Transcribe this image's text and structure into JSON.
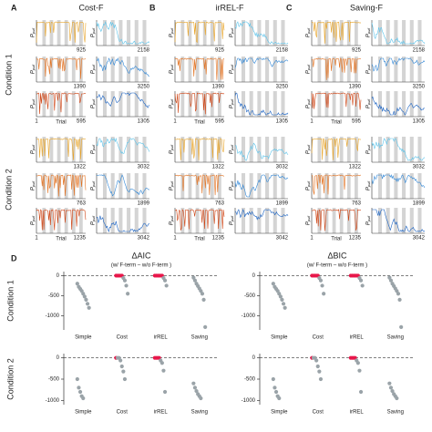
{
  "panels": [
    {
      "label": "A",
      "title": "Cost-F"
    },
    {
      "label": "B",
      "title": "irREL-F"
    },
    {
      "label": "C",
      "title": "Saving-F"
    }
  ],
  "conditions": [
    "Condition 1",
    "Condition 2"
  ],
  "trace_ylabel": "P",
  "trace_ylabel_sub": "pull",
  "trace_xlabel": "Trial",
  "trace_xstart": "1",
  "trace_ends": [
    [
      925,
      2158
    ],
    [
      1390,
      3250
    ],
    [
      595,
      1305
    ],
    [
      1322,
      3032
    ],
    [
      763,
      1899
    ],
    [
      1235,
      3042
    ]
  ],
  "trace_colors": [
    [
      "#e8a428",
      "#5cc3ea"
    ],
    [
      "#e2701e",
      "#2f86d6"
    ],
    [
      "#cf4414",
      "#1a62c2"
    ]
  ],
  "panel_d_label": "D",
  "chart_data": [
    {
      "type": "strip",
      "title": "ΔAIC",
      "subtitle": "(w/ F-term – w/o F-term )",
      "condition": 0,
      "categories": [
        "Simple",
        "Cost",
        "irREL",
        "Saving"
      ],
      "values": [
        [
          -200,
          -280,
          -330,
          -380,
          -450,
          -520,
          -600,
          -700,
          -800
        ],
        [
          0,
          0,
          0,
          0,
          0,
          -60,
          -120,
          -250,
          -450
        ],
        [
          0,
          0,
          0,
          0,
          0,
          0,
          -60,
          -120,
          -250
        ],
        [
          -50,
          -120,
          -200,
          -260,
          -320,
          -380,
          -450,
          -600,
          -1280
        ]
      ],
      "colors": [
        [
          "#9aa3a8",
          "#9aa3a8",
          "#9aa3a8",
          "#9aa3a8",
          "#9aa3a8",
          "#9aa3a8",
          "#9aa3a8",
          "#9aa3a8",
          "#9aa3a8"
        ],
        [
          "#e8174a",
          "#e8174a",
          "#e8174a",
          "#e8174a",
          "#e8174a",
          "#9aa3a8",
          "#9aa3a8",
          "#9aa3a8",
          "#9aa3a8"
        ],
        [
          "#e8174a",
          "#e8174a",
          "#e8174a",
          "#e8174a",
          "#e8174a",
          "#e8174a",
          "#9aa3a8",
          "#9aa3a8",
          "#9aa3a8"
        ],
        [
          "#9aa3a8",
          "#9aa3a8",
          "#9aa3a8",
          "#9aa3a8",
          "#9aa3a8",
          "#9aa3a8",
          "#9aa3a8",
          "#9aa3a8",
          "#9aa3a8"
        ]
      ],
      "ylim": [
        -1350,
        100
      ],
      "yticks": [
        0,
        -500,
        -1000
      ],
      "zero_line": true
    },
    {
      "type": "strip",
      "title": "ΔBIC",
      "subtitle": "(w/ F-term – w/o F-term )",
      "condition": 0,
      "categories": [
        "Simple",
        "Cost",
        "irREL",
        "Saving"
      ],
      "values": [
        [
          -200,
          -280,
          -330,
          -380,
          -450,
          -520,
          -600,
          -700,
          -800
        ],
        [
          0,
          0,
          0,
          0,
          0,
          -60,
          -120,
          -250,
          -450
        ],
        [
          0,
          0,
          0,
          0,
          0,
          0,
          -60,
          -120,
          -250
        ],
        [
          -50,
          -120,
          -200,
          -260,
          -320,
          -380,
          -450,
          -600,
          -1280
        ]
      ],
      "colors": [
        [
          "#9aa3a8",
          "#9aa3a8",
          "#9aa3a8",
          "#9aa3a8",
          "#9aa3a8",
          "#9aa3a8",
          "#9aa3a8",
          "#9aa3a8",
          "#9aa3a8"
        ],
        [
          "#e8174a",
          "#e8174a",
          "#e8174a",
          "#e8174a",
          "#e8174a",
          "#9aa3a8",
          "#9aa3a8",
          "#9aa3a8",
          "#9aa3a8"
        ],
        [
          "#e8174a",
          "#e8174a",
          "#e8174a",
          "#e8174a",
          "#e8174a",
          "#e8174a",
          "#9aa3a8",
          "#9aa3a8",
          "#9aa3a8"
        ],
        [
          "#9aa3a8",
          "#9aa3a8",
          "#9aa3a8",
          "#9aa3a8",
          "#9aa3a8",
          "#9aa3a8",
          "#9aa3a8",
          "#9aa3a8",
          "#9aa3a8"
        ]
      ],
      "ylim": [
        -1350,
        100
      ],
      "yticks": [
        0,
        -500,
        -1000
      ],
      "zero_line": true
    },
    {
      "type": "strip",
      "condition": 1,
      "categories": [
        "Simple",
        "Cost",
        "irREL",
        "Saving"
      ],
      "values": [
        [
          -500,
          -700,
          -800,
          -900,
          -950
        ],
        [
          0,
          0,
          0,
          -60,
          -200,
          -320,
          -500
        ],
        [
          0,
          0,
          0,
          0,
          -60,
          -120,
          -300,
          -800
        ],
        [
          -600,
          -700,
          -780,
          -850,
          -900,
          -950
        ]
      ],
      "colors": [
        [
          "#9aa3a8",
          "#9aa3a8",
          "#9aa3a8",
          "#9aa3a8",
          "#9aa3a8"
        ],
        [
          "#e8174a",
          "#9aa3a8",
          "#9aa3a8",
          "#9aa3a8",
          "#9aa3a8",
          "#9aa3a8",
          "#9aa3a8"
        ],
        [
          "#e8174a",
          "#e8174a",
          "#e8174a",
          "#e8174a",
          "#9aa3a8",
          "#9aa3a8",
          "#9aa3a8",
          "#9aa3a8"
        ],
        [
          "#9aa3a8",
          "#9aa3a8",
          "#9aa3a8",
          "#9aa3a8",
          "#9aa3a8",
          "#9aa3a8"
        ]
      ],
      "ylim": [
        -1100,
        100
      ],
      "yticks": [
        0,
        -500,
        -1000
      ],
      "zero_line": true
    },
    {
      "type": "strip",
      "condition": 1,
      "categories": [
        "Simple",
        "Cost",
        "irREL",
        "Saving"
      ],
      "values": [
        [
          -500,
          -700,
          -800,
          -900,
          -950
        ],
        [
          0,
          0,
          0,
          -60,
          -200,
          -320,
          -500
        ],
        [
          0,
          0,
          0,
          0,
          -60,
          -120,
          -300,
          -800
        ],
        [
          -600,
          -700,
          -780,
          -850,
          -900,
          -950
        ]
      ],
      "colors": [
        [
          "#9aa3a8",
          "#9aa3a8",
          "#9aa3a8",
          "#9aa3a8",
          "#9aa3a8"
        ],
        [
          "#e8174a",
          "#9aa3a8",
          "#9aa3a8",
          "#9aa3a8",
          "#9aa3a8",
          "#9aa3a8",
          "#9aa3a8"
        ],
        [
          "#e8174a",
          "#e8174a",
          "#e8174a",
          "#e8174a",
          "#9aa3a8",
          "#9aa3a8",
          "#9aa3a8",
          "#9aa3a8"
        ],
        [
          "#9aa3a8",
          "#9aa3a8",
          "#9aa3a8",
          "#9aa3a8",
          "#9aa3a8",
          "#9aa3a8"
        ]
      ],
      "ylim": [
        -1100,
        100
      ],
      "yticks": [
        0,
        -500,
        -1000
      ],
      "zero_line": true
    }
  ]
}
